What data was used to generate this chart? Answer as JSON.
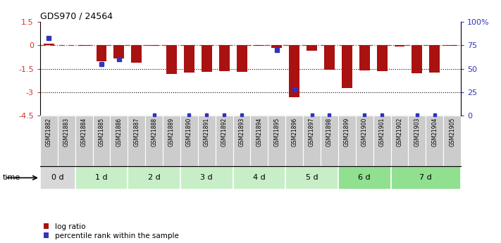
{
  "title": "GDS970 / 24564",
  "samples": [
    "GSM21882",
    "GSM21883",
    "GSM21884",
    "GSM21885",
    "GSM21886",
    "GSM21887",
    "GSM21888",
    "GSM21889",
    "GSM21890",
    "GSM21891",
    "GSM21892",
    "GSM21893",
    "GSM21894",
    "GSM21895",
    "GSM21896",
    "GSM21897",
    "GSM21898",
    "GSM21899",
    "GSM21900",
    "GSM21901",
    "GSM21902",
    "GSM21903",
    "GSM21904",
    "GSM21905"
  ],
  "log_ratio": [
    0.12,
    0.0,
    -0.05,
    -1.0,
    -0.85,
    -1.1,
    -0.05,
    -1.85,
    -1.75,
    -1.7,
    -1.65,
    -1.7,
    -0.04,
    -0.18,
    -3.3,
    -0.35,
    -1.55,
    -2.75,
    -1.6,
    -1.65,
    -0.08,
    -1.8,
    -1.75,
    -0.05
  ],
  "percentile_raw": [
    83,
    0,
    0,
    55,
    60,
    0,
    0,
    0,
    0,
    0,
    0,
    0,
    0,
    70,
    28,
    0,
    0,
    0,
    0,
    0,
    0,
    0,
    0,
    0
  ],
  "blue_dot_at_bottom": [
    false,
    false,
    false,
    false,
    false,
    false,
    true,
    false,
    true,
    true,
    true,
    true,
    false,
    false,
    false,
    true,
    true,
    false,
    true,
    true,
    false,
    true,
    true,
    false
  ],
  "time_groups": [
    {
      "label": "0 d",
      "start": 0,
      "end": 2,
      "color": "#d8d8d8"
    },
    {
      "label": "1 d",
      "start": 2,
      "end": 5,
      "color": "#c8eec8"
    },
    {
      "label": "2 d",
      "start": 5,
      "end": 8,
      "color": "#c8eec8"
    },
    {
      "label": "3 d",
      "start": 8,
      "end": 11,
      "color": "#c8eec8"
    },
    {
      "label": "4 d",
      "start": 11,
      "end": 14,
      "color": "#c8eec8"
    },
    {
      "label": "5 d",
      "start": 14,
      "end": 17,
      "color": "#c8eec8"
    },
    {
      "label": "6 d",
      "start": 17,
      "end": 20,
      "color": "#90e090"
    },
    {
      "label": "7 d",
      "start": 20,
      "end": 24,
      "color": "#90e090"
    }
  ],
  "ylim": [
    -4.5,
    1.5
  ],
  "yticks_left": [
    1.5,
    0.0,
    -1.5,
    -3.0,
    -4.5
  ],
  "yticks_right": [
    100,
    75,
    50,
    25,
    0
  ],
  "bar_color": "#aa1111",
  "dot_color": "#3333bb",
  "refline_color": "#cc3333",
  "grid_lines": [
    -1.5,
    -3.0
  ],
  "bar_width": 0.6,
  "legend_log_ratio": "log ratio",
  "legend_percentile": "percentile rank within the sample",
  "sample_box_color": "#cccccc",
  "figsize": [
    7.11,
    3.45
  ],
  "dpi": 100
}
